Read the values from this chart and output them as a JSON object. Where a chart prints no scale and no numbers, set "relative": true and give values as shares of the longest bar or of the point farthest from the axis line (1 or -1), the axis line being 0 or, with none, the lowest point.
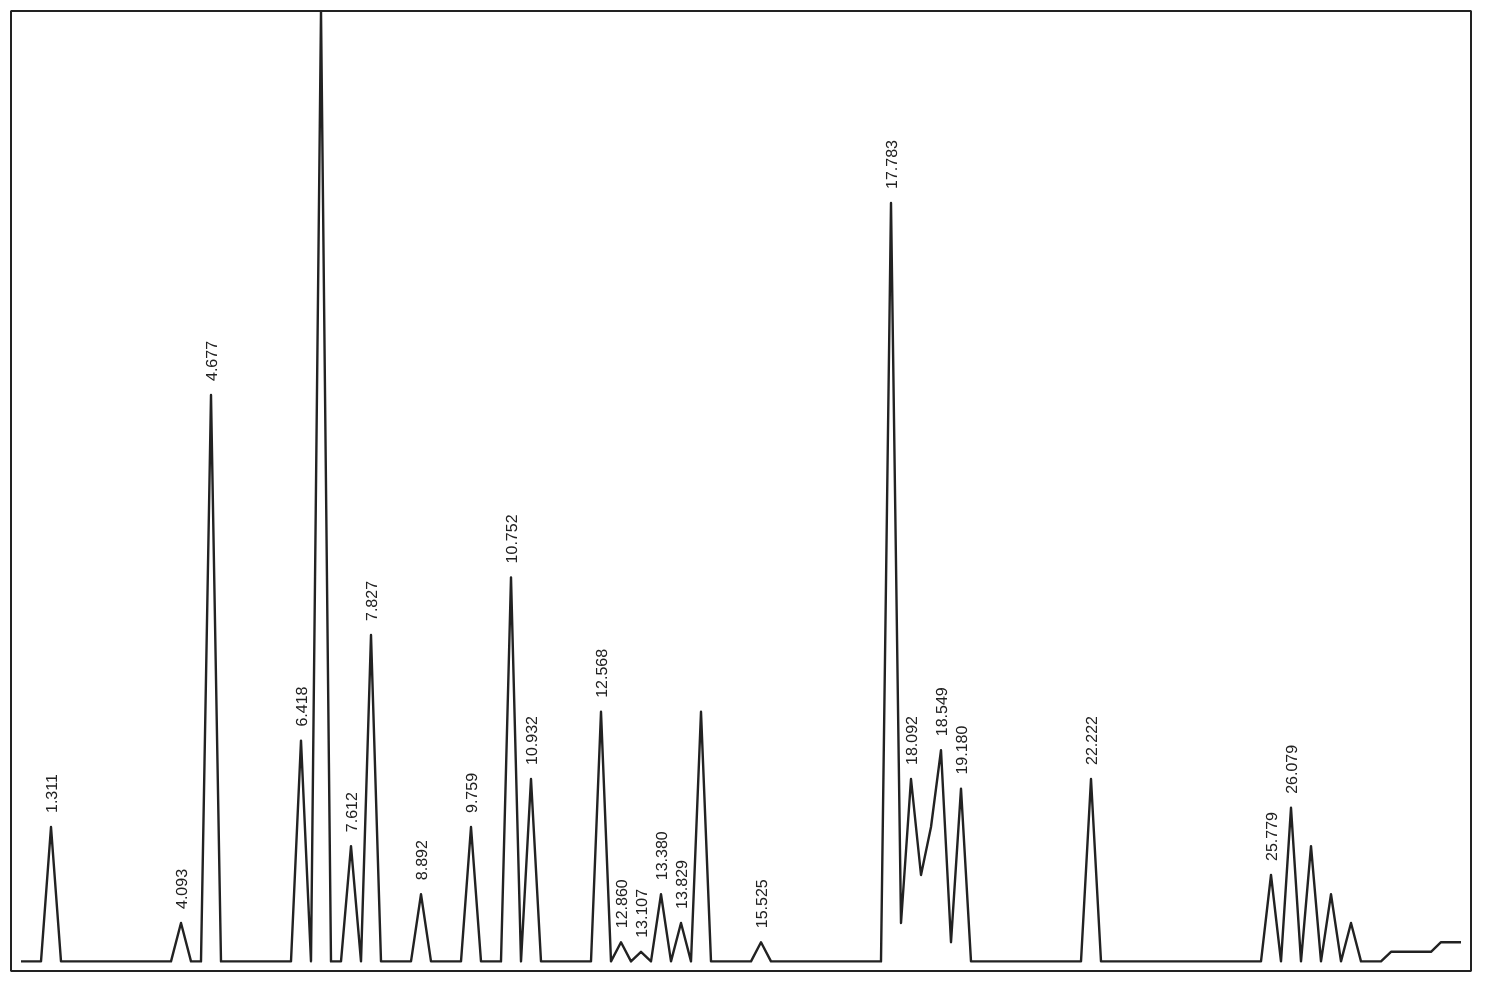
{
  "chart_data": {
    "type": "line",
    "relative": true,
    "grid": false,
    "categories": [
      null,
      null,
      null,
      "1.311",
      null,
      null,
      null,
      null,
      null,
      null,
      null,
      null,
      null,
      null,
      null,
      null,
      "4.093",
      null,
      null,
      "4.677",
      null,
      null,
      null,
      null,
      null,
      null,
      null,
      null,
      "6.418",
      null,
      null,
      null,
      null,
      "7.612",
      null,
      "7.827",
      null,
      null,
      null,
      null,
      "8.892",
      null,
      null,
      null,
      null,
      "9.759",
      null,
      null,
      null,
      "10.752",
      null,
      "10.932",
      null,
      null,
      null,
      null,
      null,
      null,
      "12.568",
      null,
      "12.860",
      null,
      "13.107",
      null,
      "13.380",
      null,
      "13.829",
      null,
      null,
      null,
      null,
      null,
      null,
      null,
      "15.525",
      null,
      null,
      null,
      null,
      null,
      null,
      null,
      null,
      null,
      null,
      null,
      null,
      "17.783",
      null,
      "18.092",
      null,
      null,
      "18.549",
      null,
      "19.180",
      null,
      null,
      null,
      null,
      null,
      null,
      null,
      null,
      null,
      null,
      null,
      null,
      "22.222",
      null,
      null,
      null,
      null,
      null,
      null,
      null,
      null,
      null,
      null,
      null,
      null,
      null,
      null,
      null,
      null,
      null,
      "25.779",
      null,
      "26.079",
      null,
      null,
      null,
      null,
      null,
      null,
      null,
      null,
      null,
      null,
      null,
      null,
      null,
      null,
      null,
      null,
      null
    ],
    "series": [
      {
        "color": "#222222",
        "values": [
          0.01,
          0.01,
          0.01,
          0.15,
          0.01,
          0.01,
          0.01,
          0.01,
          0.01,
          0.01,
          0.01,
          0.01,
          0.01,
          0.01,
          0.01,
          0.01,
          0.05,
          0.01,
          0.01,
          0.6,
          0.01,
          0.01,
          0.01,
          0.01,
          0.01,
          0.01,
          0.01,
          0.01,
          0.24,
          0.01,
          1,
          0.01,
          0.01,
          0.13,
          0.01,
          0.35,
          0.01,
          0.01,
          0.01,
          0.01,
          0.08,
          0.01,
          0.01,
          0.01,
          0.01,
          0.15,
          0.01,
          0.01,
          0.01,
          0.41,
          0.01,
          0.2,
          0.01,
          0.01,
          0.01,
          0.01,
          0.01,
          0.01,
          0.27,
          0.01,
          0.03,
          0.01,
          0.02,
          0.01,
          0.08,
          0.01,
          0.05,
          0.01,
          0.27,
          0.01,
          0.01,
          0.01,
          0.01,
          0.01,
          0.03,
          0.01,
          0.01,
          0.01,
          0.01,
          0.01,
          0.01,
          0.01,
          0.01,
          0.01,
          0.01,
          0.01,
          0.01,
          0.8,
          0.05,
          0.2,
          0.1,
          0.15,
          0.23,
          0.03,
          0.19,
          0.01,
          0.01,
          0.01,
          0.01,
          0.01,
          0.01,
          0.01,
          0.01,
          0.01,
          0.01,
          0.01,
          0.01,
          0.2,
          0.01,
          0.01,
          0.01,
          0.01,
          0.01,
          0.01,
          0.01,
          0.01,
          0.01,
          0.01,
          0.01,
          0.01,
          0.01,
          0.01,
          0.01,
          0.01,
          0.01,
          0.1,
          0.01,
          0.17,
          0.01,
          0.13,
          0.01,
          0.08,
          0.01,
          0.05,
          0.01,
          0.01,
          0.01,
          0.02,
          0.02,
          0.02,
          0.02,
          0.02,
          0.03,
          0.03,
          0.03
        ]
      }
    ]
  }
}
